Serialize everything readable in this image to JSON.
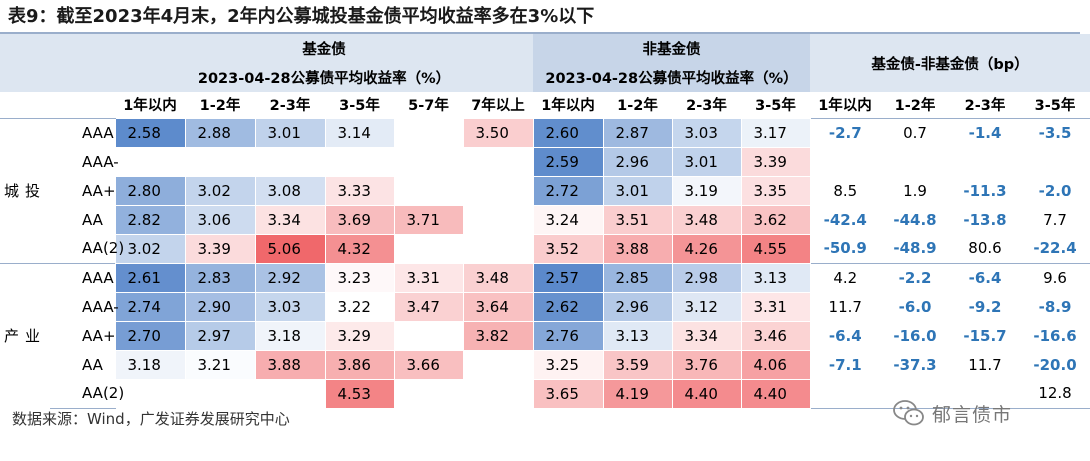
{
  "title": "表9：截至2023年4月末，2年内公募城投基金债平均收益率多在3%以下",
  "header": {
    "fund_group": "基金债",
    "fund_sub": "2023-04-28公募债平均收益率（%）",
    "nonfund_group": "非基金债",
    "nonfund_sub": "2023-04-28公募债平均收益率（%）",
    "diff_group": "基金债-非基金债（bp）",
    "fund_terms": [
      "1年以内",
      "1-2年",
      "2-3年",
      "3-5年",
      "5-7年",
      "7年以上"
    ],
    "nonfund_terms": [
      "1年以内",
      "1-2年",
      "2-3年",
      "3-5年"
    ],
    "diff_terms": [
      "1年以内",
      "1-2年",
      "2-3年",
      "3-5年"
    ]
  },
  "sections": [
    {
      "name": "城投",
      "rows": [
        {
          "rating": "AAA",
          "fund": [
            "2.58",
            "2.88",
            "3.01",
            "3.14",
            "",
            "3.50"
          ],
          "nonfund": [
            "2.60",
            "2.87",
            "3.03",
            "3.17"
          ],
          "diff": [
            "-2.7",
            "0.7",
            "-1.4",
            "-3.5"
          ]
        },
        {
          "rating": "AAA-",
          "fund": [
            "",
            "",
            "",
            "",
            "",
            ""
          ],
          "nonfund": [
            "2.59",
            "2.96",
            "3.01",
            "3.39"
          ],
          "diff": [
            "",
            "",
            "",
            ""
          ]
        },
        {
          "rating": "AA+",
          "fund": [
            "2.80",
            "3.02",
            "3.08",
            "3.33",
            "",
            ""
          ],
          "nonfund": [
            "2.72",
            "3.01",
            "3.19",
            "3.35"
          ],
          "diff": [
            "8.5",
            "1.9",
            "-11.3",
            "-2.0"
          ]
        },
        {
          "rating": "AA",
          "fund": [
            "2.82",
            "3.06",
            "3.34",
            "3.69",
            "3.71",
            ""
          ],
          "nonfund": [
            "3.24",
            "3.51",
            "3.48",
            "3.62"
          ],
          "diff": [
            "-42.4",
            "-44.8",
            "-13.8",
            "7.7"
          ]
        },
        {
          "rating": "AA(2)",
          "fund": [
            "3.02",
            "3.39",
            "5.06",
            "4.32",
            "",
            ""
          ],
          "nonfund": [
            "3.52",
            "3.88",
            "4.26",
            "4.55"
          ],
          "diff": [
            "-50.9",
            "-48.9",
            "80.6",
            "-22.4"
          ]
        }
      ]
    },
    {
      "name": "产业",
      "rows": [
        {
          "rating": "AAA",
          "fund": [
            "2.61",
            "2.83",
            "2.92",
            "3.23",
            "3.31",
            "3.48"
          ],
          "nonfund": [
            "2.57",
            "2.85",
            "2.98",
            "3.13"
          ],
          "diff": [
            "4.2",
            "-2.2",
            "-6.4",
            "9.6"
          ]
        },
        {
          "rating": "AAA-",
          "fund": [
            "2.74",
            "2.90",
            "3.03",
            "3.22",
            "3.47",
            "3.64"
          ],
          "nonfund": [
            "2.62",
            "2.96",
            "3.12",
            "3.31"
          ],
          "diff": [
            "11.7",
            "-6.0",
            "-9.2",
            "-8.9"
          ]
        },
        {
          "rating": "AA+",
          "fund": [
            "2.70",
            "2.97",
            "3.18",
            "3.29",
            "",
            "3.82"
          ],
          "nonfund": [
            "2.76",
            "3.13",
            "3.34",
            "3.46"
          ],
          "diff": [
            "-6.4",
            "-16.0",
            "-15.7",
            "-16.6"
          ]
        },
        {
          "rating": "AA",
          "fund": [
            "3.18",
            "3.21",
            "3.88",
            "3.86",
            "3.66",
            ""
          ],
          "nonfund": [
            "3.25",
            "3.59",
            "3.76",
            "4.06"
          ],
          "diff": [
            "-7.1",
            "-37.3",
            "11.7",
            "-20.0"
          ]
        },
        {
          "rating": "AA(2)",
          "fund": [
            "",
            "",
            "",
            "4.53",
            "",
            ""
          ],
          "nonfund": [
            "3.65",
            "4.19",
            "4.40",
            "4.40"
          ],
          "diff": [
            "",
            "",
            "",
            "12.8"
          ]
        }
      ]
    }
  ],
  "source": "数据来源：Wind，广发证券发展研究中心",
  "watermark": {
    "icon": "wechat-icon",
    "text": "郁言债市"
  },
  "colors": {
    "low": "#5b89cb",
    "mid": "#ffffff",
    "high": "#f0686b",
    "negative_text": "#2e75b6",
    "header_light": "#dde6f1",
    "header_dark": "#c7d5e8"
  }
}
